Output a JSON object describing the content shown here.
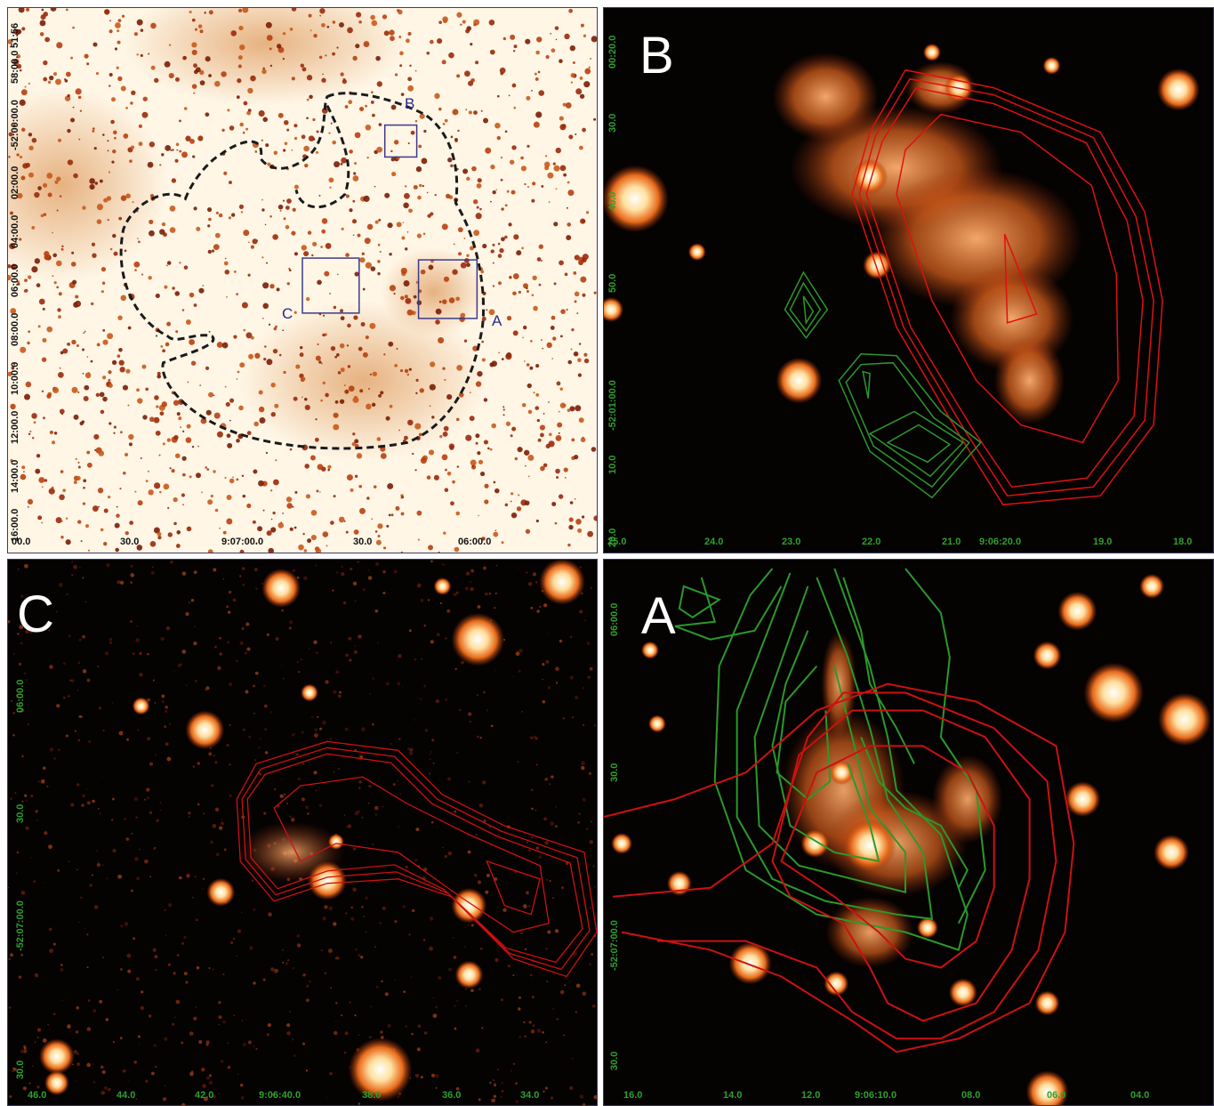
{
  "overview": {
    "box_labels": {
      "a": "A",
      "b": "B",
      "c": "C"
    },
    "x_ticks": [
      "00.0",
      "30.0",
      "9:07:00.0",
      "30.0",
      "06:00.0"
    ],
    "y_ticks": [
      "16:00.0",
      "14:00.0",
      "12:00.0",
      "10:00.0",
      "08:00.0",
      "06:00.0",
      "04:00.0",
      "02:00.0",
      "-52:00:00.0",
      "58:00.0",
      "51:56"
    ]
  },
  "panel_b": {
    "label": "B",
    "x_ticks": [
      "25.0",
      "24.0",
      "23.0",
      "22.0",
      "21.0",
      "9:06:20.0",
      "19.0",
      "18.0"
    ],
    "y_ticks": [
      "20.0",
      "10.0",
      "-52:01:00.0",
      "50.0",
      "40.0",
      "30.0",
      "00:20.0"
    ]
  },
  "panel_c": {
    "label": "C",
    "x_ticks": [
      "46.0",
      "44.0",
      "42.0",
      "9:06:40.0",
      "38.0",
      "36.0",
      "34.0"
    ],
    "y_ticks": [
      "30.0",
      "-52:07:00.0",
      "30.0",
      "06:00.0"
    ]
  },
  "panel_a": {
    "label": "A",
    "x_ticks": [
      "16.0",
      "14.0",
      "12.0",
      "9:06:10.0",
      "08.0",
      "06.0",
      "04.0"
    ],
    "y_ticks": [
      "30.0",
      "-52:07:00.0",
      "30.0",
      "06:00.0"
    ]
  },
  "colors": {
    "contour_red": "#dd1111",
    "contour_green": "#2a9a2a",
    "outline_dashed": "#1a1a1a",
    "box": "#3a3a8a"
  }
}
